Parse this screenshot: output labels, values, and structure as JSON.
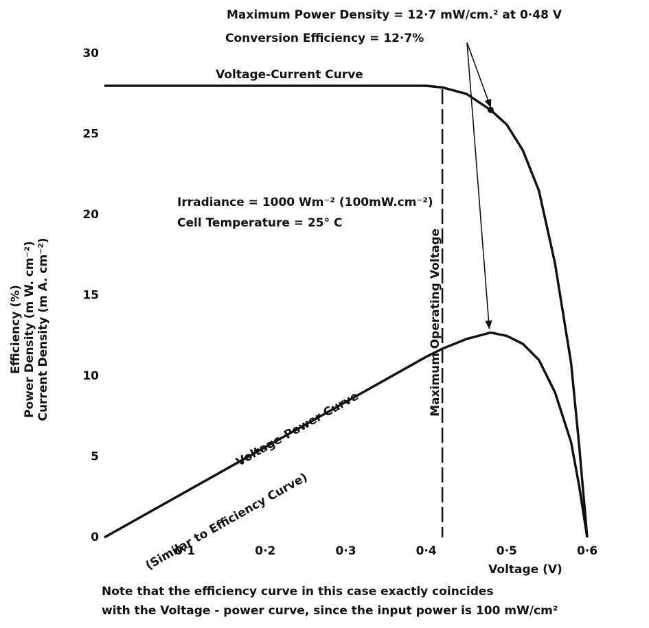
{
  "chart_data": {
    "type": "line",
    "annotations": {
      "max_power": "Maximum Power Density = 12·7 mW/cm.² at 0·48 V",
      "efficiency": "Conversion Efficiency = 12·7%",
      "irradiance": "Irradiance = 1000 Wm⁻² (100mW.cm⁻²)",
      "temperature": "Cell Temperature = 25° C",
      "power_note": "(Similar to Efficiency Curve)",
      "note_line1": "Note that the efficiency curve in this case exactly coincides",
      "note_line2": "with the Voltage - power curve, since the input power is 100 mW/cm²"
    },
    "max_operating_voltage": {
      "x": 0.42,
      "label": "Maximum Operating Voltage"
    },
    "x_label": "Voltage (V)",
    "y_label": [
      "Efficiency (%)",
      "Power Density (m W. cm⁻²)",
      "Current Density (m A. cm⁻²)"
    ],
    "x": [
      0,
      0.1,
      0.2,
      0.3,
      0.4,
      0.42,
      0.45,
      0.48,
      0.5,
      0.52,
      0.54,
      0.56,
      0.58,
      0.59,
      0.6
    ],
    "series": [
      {
        "name": "Voltage-Current Curve",
        "color": "#111111",
        "values": [
          28,
          28,
          28,
          28,
          28,
          27.9,
          27.5,
          26.5,
          25.6,
          24.0,
          21.5,
          17.0,
          10.8,
          5.7,
          0
        ]
      },
      {
        "name": "Voltage-Power Curve",
        "color": "#111111",
        "values": [
          0,
          2.8,
          5.6,
          8.4,
          11.2,
          11.7,
          12.3,
          12.7,
          12.5,
          12.0,
          11.0,
          9.0,
          5.9,
          3.2,
          0
        ]
      }
    ],
    "xlim": [
      0,
      0.6
    ],
    "ylim": [
      0,
      30
    ],
    "xticks": [
      {
        "value": 0.1,
        "label": "0·1"
      },
      {
        "value": 0.2,
        "label": "0·2"
      },
      {
        "value": 0.3,
        "label": "0·3"
      },
      {
        "value": 0.4,
        "label": "0·4"
      },
      {
        "value": 0.5,
        "label": "0·5"
      },
      {
        "value": 0.6,
        "label": "0·6"
      }
    ],
    "yticks": [
      0,
      5,
      10,
      15,
      20,
      25,
      30
    ]
  }
}
